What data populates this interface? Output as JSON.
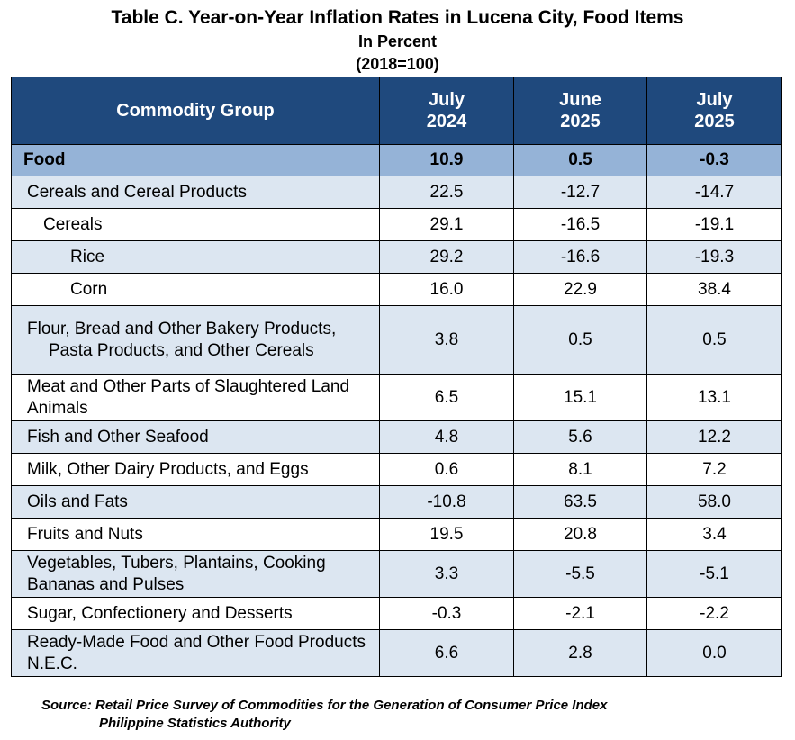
{
  "title": "Table C. Year-on-Year Inflation Rates in Lucena City, Food Items",
  "subtitle": "In Percent",
  "base": "(2018=100)",
  "chart_data": {
    "type": "table",
    "columns": [
      "Commodity Group",
      "July 2024",
      "June 2025",
      "July 2025"
    ],
    "column_lines": [
      [
        "Commodity Group"
      ],
      [
        "July",
        "2024"
      ],
      [
        "June",
        "2025"
      ],
      [
        "July",
        "2025"
      ]
    ],
    "rows": [
      {
        "label": "Food",
        "values": [
          "10.9",
          "0.5",
          "-0.3"
        ]
      },
      {
        "label": "Cereals and Cereal Products",
        "values": [
          "22.5",
          "-12.7",
          "-14.7"
        ]
      },
      {
        "label": "Cereals",
        "values": [
          "29.1",
          "-16.5",
          "-19.1"
        ]
      },
      {
        "label": "Rice",
        "values": [
          "29.2",
          "-16.6",
          "-19.3"
        ]
      },
      {
        "label": "Corn",
        "values": [
          "16.0",
          "22.9",
          "38.4"
        ]
      },
      {
        "label": "Flour, Bread and Other Bakery Products, Pasta Products, and Other Cereals",
        "values": [
          "3.8",
          "0.5",
          "0.5"
        ]
      },
      {
        "label": "Meat and Other Parts of Slaughtered Land Animals",
        "values": [
          "6.5",
          "15.1",
          "13.1"
        ]
      },
      {
        "label": "Fish and Other Seafood",
        "values": [
          "4.8",
          "5.6",
          "12.2"
        ]
      },
      {
        "label": "Milk, Other Dairy Products, and Eggs",
        "values": [
          "0.6",
          "8.1",
          "7.2"
        ]
      },
      {
        "label": "Oils and Fats",
        "values": [
          "-10.8",
          "63.5",
          "58.0"
        ]
      },
      {
        "label": "Fruits and Nuts",
        "values": [
          "19.5",
          "20.8",
          "3.4"
        ]
      },
      {
        "label": "Vegetables, Tubers, Plantains, Cooking Bananas and Pulses",
        "values": [
          "3.3",
          "-5.5",
          "-5.1"
        ]
      },
      {
        "label": "Sugar, Confectionery and Desserts",
        "values": [
          "-0.3",
          "-2.1",
          "-2.2"
        ]
      },
      {
        "label": "Ready-Made Food and Other Food Products N.E.C.",
        "values": [
          "6.6",
          "2.8",
          "0.0"
        ]
      }
    ]
  },
  "source_line1": "Source: Retail Price Survey of Commodities for the Generation of Consumer Price Index",
  "source_line2": "Philippine Statistics Authority",
  "colors": {
    "header_bg": "#1f497d",
    "food_row_bg": "#95b3d7",
    "alt_row_bg": "#dce6f1"
  }
}
